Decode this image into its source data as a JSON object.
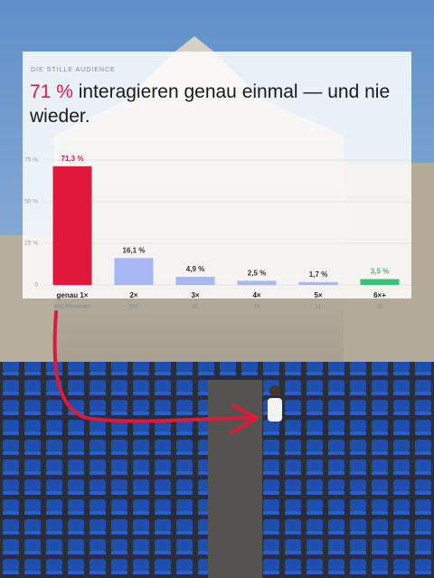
{
  "chart_data": {
    "type": "bar",
    "kicker": "DIE STILLE AUDIENCE",
    "headline_highlight": "71 %",
    "headline_rest": "interagieren genau einmal — und nie wieder.",
    "categories": [
      "genau 1×",
      "2×",
      "3×",
      "4×",
      "5×",
      "6×+"
    ],
    "sublabels": [
      "452 Personen",
      "102",
      "31",
      "16",
      "11",
      "22"
    ],
    "values": [
      71.3,
      16.1,
      4.9,
      2.5,
      1.7,
      3.5
    ],
    "value_labels": [
      "71,3 %",
      "16,1 %",
      "4,9 %",
      "2,5 %",
      "1,7 %",
      "3,5 %"
    ],
    "colors": [
      "#e0193a",
      "#a9b8f5",
      "#a9b8f5",
      "#a9b8f5",
      "#a9b8f5",
      "#3dbf7a"
    ],
    "ylim": [
      0,
      75
    ],
    "yticks": [
      {
        "value": 0,
        "label": "0"
      },
      {
        "value": 25,
        "label": "25 %"
      },
      {
        "value": 50,
        "label": "50 %"
      },
      {
        "value": 75,
        "label": "75 %"
      }
    ],
    "grid": true
  }
}
